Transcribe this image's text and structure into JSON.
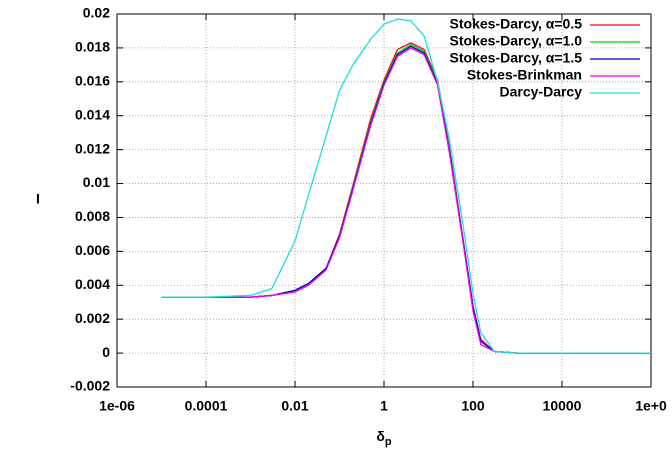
{
  "chart_data": {
    "type": "line",
    "xlabel": "δ",
    "xlabel_subscript": "p",
    "ylabel": "I",
    "xscale": "log",
    "grid": true,
    "legend": "top-right",
    "xlim": [
      1e-06,
      1000000
    ],
    "ylim": [
      -0.002,
      0.02
    ],
    "xticks": [
      {
        "value": 1e-06,
        "label": "1e-06"
      },
      0.0001,
      0.01,
      1,
      100,
      10000,
      {
        "value": 1000000,
        "label": "1e+0"
      }
    ],
    "yticks": [
      -0.002,
      0,
      0.002,
      0.004,
      0.006,
      0.008,
      0.01,
      0.012,
      0.014,
      0.016,
      0.018,
      0.02
    ],
    "x": [
      1e-05,
      0.0001,
      0.001,
      0.003,
      0.01,
      0.02,
      0.05,
      0.1,
      0.2,
      0.5,
      1,
      2,
      4,
      8,
      16,
      30,
      60,
      100,
      150,
      300,
      1000,
      10000,
      100000,
      1000000
    ],
    "series": [
      {
        "name": "Stokes-Darcy, α=0.5",
        "color": "#ff0000",
        "values": [
          0.0033,
          0.0033,
          0.0033,
          0.0034,
          0.0037,
          0.0041,
          0.005,
          0.007,
          0.0099,
          0.0138,
          0.0161,
          0.0179,
          0.0183,
          0.0179,
          0.0161,
          0.012,
          0.0067,
          0.0028,
          0.0008,
          0.0001,
          0,
          0,
          0,
          0
        ]
      },
      {
        "name": "Stokes-Darcy, α=1.0",
        "color": "#00dd00",
        "values": [
          0.0033,
          0.0033,
          0.0033,
          0.0034,
          0.0037,
          0.0041,
          0.005,
          0.0069,
          0.0098,
          0.0136,
          0.016,
          0.0177,
          0.0182,
          0.0178,
          0.016,
          0.0119,
          0.0066,
          0.0027,
          0.0007,
          0.0001,
          0,
          0,
          0,
          0
        ]
      },
      {
        "name": "Stokes-Darcy, α=1.5",
        "color": "#0000cc",
        "values": [
          0.0033,
          0.0033,
          0.0033,
          0.0034,
          0.0037,
          0.0041,
          0.005,
          0.0069,
          0.0097,
          0.0135,
          0.0159,
          0.0176,
          0.0181,
          0.0177,
          0.0159,
          0.0118,
          0.0066,
          0.0027,
          0.0007,
          0.0001,
          0,
          0,
          0,
          0
        ]
      },
      {
        "name": "Stokes-Brinkman",
        "color": "#ee00ee",
        "values": [
          0.0033,
          0.0033,
          0.0033,
          0.0034,
          0.0036,
          0.004,
          0.0049,
          0.0068,
          0.0096,
          0.0134,
          0.0158,
          0.0175,
          0.018,
          0.0176,
          0.0158,
          0.0117,
          0.0065,
          0.0025,
          0.0005,
          0.0001,
          0,
          0,
          0,
          0
        ]
      },
      {
        "name": "Darcy-Darcy",
        "color": "#22dddd",
        "values": [
          0.0033,
          0.0033,
          0.0034,
          0.0038,
          0.0066,
          0.0093,
          0.0128,
          0.0155,
          0.017,
          0.0185,
          0.0194,
          0.0197,
          0.0196,
          0.0187,
          0.016,
          0.0125,
          0.0075,
          0.0035,
          0.0012,
          0.0001,
          0,
          0,
          0,
          0
        ]
      }
    ]
  }
}
